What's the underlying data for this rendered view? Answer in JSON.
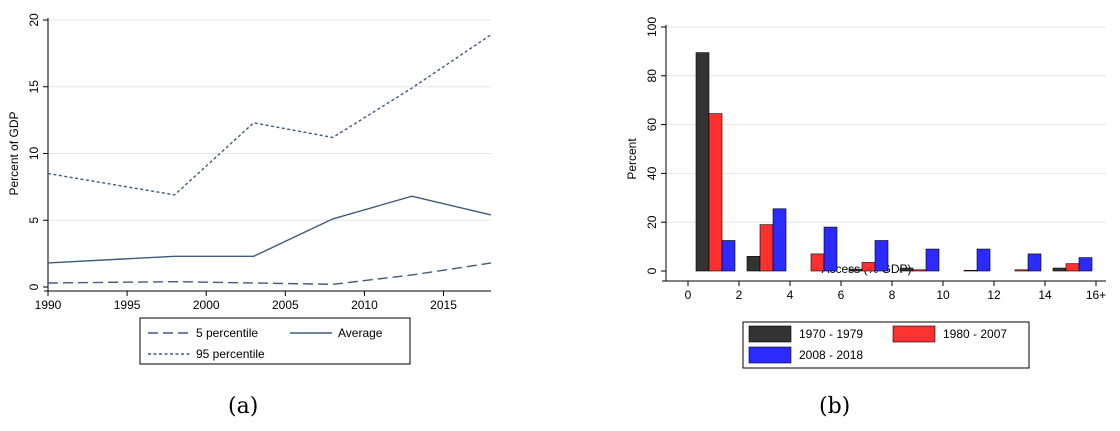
{
  "chart_data": [
    {
      "type": "line",
      "ylabel": "Percent of GDP",
      "xlim": [
        1990,
        2018
      ],
      "ylim": [
        0,
        20
      ],
      "x_ticks": [
        "1990",
        "1995",
        "2000",
        "2005",
        "2010",
        "2015"
      ],
      "y_ticks": [
        "0",
        "5",
        "10",
        "15",
        "20"
      ],
      "grid": "horizontal",
      "legend_position": "bottom",
      "series": [
        {
          "name": "5 percentile",
          "style": "long-dash",
          "color": "#3d5a80",
          "x": [
            1990,
            1998,
            2003,
            2008,
            2013,
            2018
          ],
          "values": [
            0.3,
            0.4,
            0.3,
            0.2,
            0.9,
            1.8
          ]
        },
        {
          "name": "Average",
          "style": "solid",
          "color": "#3d5a80",
          "x": [
            1990,
            1998,
            2003,
            2008,
            2013,
            2018
          ],
          "values": [
            1.8,
            2.3,
            2.3,
            5.1,
            6.8,
            5.4
          ]
        },
        {
          "name": "95 percentile",
          "style": "short-dash",
          "color": "#3d5a80",
          "x": [
            1990,
            1998,
            2003,
            2008,
            2013,
            2018
          ],
          "values": [
            8.5,
            6.9,
            12.3,
            11.2,
            14.9,
            18.9
          ]
        }
      ]
    },
    {
      "type": "bar",
      "xlabel": "Access (% GDP)",
      "ylabel": "Percent",
      "ylim": [
        0,
        100
      ],
      "x_ticks": [
        "0",
        "2",
        "4",
        "6",
        "8",
        "10",
        "12",
        "14",
        "16+"
      ],
      "y_ticks": [
        "0",
        "20",
        "40",
        "60",
        "80",
        "100"
      ],
      "grid": "horizontal",
      "legend_position": "bottom",
      "series": [
        {
          "name": "1970 - 1979",
          "color": "#333333",
          "values": [
            89.5,
            6.0,
            0,
            0.8,
            1.2,
            0,
            0,
            1.2
          ]
        },
        {
          "name": "1980 - 2007",
          "color": "#ff3030",
          "values": [
            64.5,
            19.0,
            7.0,
            3.5,
            0.5,
            0.3,
            0.5,
            3.0
          ]
        },
        {
          "name": "2008 - 2018",
          "color": "#2b2bff",
          "values": [
            12.5,
            25.5,
            18.0,
            12.5,
            9.0,
            9.0,
            7.0,
            5.5
          ]
        }
      ]
    }
  ],
  "captions": {
    "a": "(a)",
    "b": "(b)"
  }
}
